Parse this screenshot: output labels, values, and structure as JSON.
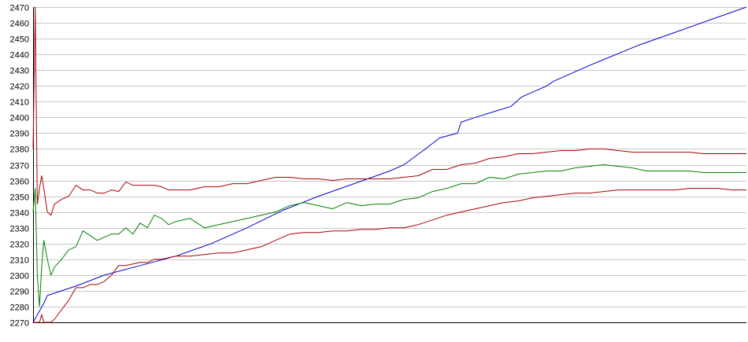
{
  "chart_data": {
    "type": "line",
    "title": "",
    "xlabel": "",
    "ylabel": "",
    "ylim": [
      2270,
      2470
    ],
    "y_ticks": [
      2270,
      2280,
      2290,
      2300,
      2310,
      2320,
      2330,
      2340,
      2350,
      2360,
      2370,
      2380,
      2390,
      2400,
      2410,
      2420,
      2430,
      2440,
      2450,
      2460,
      2470
    ],
    "y_tick_labels": [
      "2270",
      "2280",
      "2290",
      "2300",
      "2310",
      "2320",
      "2330",
      "2340",
      "2350",
      "2360",
      "2370",
      "2380",
      "2390",
      "2400",
      "2410",
      "2420",
      "2430",
      "2440",
      "2450",
      "2460",
      "2470"
    ],
    "xlim": [
      0,
      100
    ],
    "grid": true,
    "legend": "none",
    "series": [
      {
        "color": "#0000cc",
        "x": [
          0,
          1.5,
          2,
          4,
          6,
          10,
          15,
          20,
          25,
          30,
          35,
          40,
          45,
          50,
          52,
          55,
          57,
          59.5,
          60,
          62,
          67,
          68.5,
          72,
          73,
          78,
          85,
          90,
          95,
          100
        ],
        "values": [
          2270,
          2282,
          2287,
          2290,
          2293,
          2300,
          2306,
          2312,
          2320,
          2330,
          2341,
          2350,
          2358,
          2366,
          2370,
          2380,
          2387,
          2390,
          2397,
          2400,
          2407,
          2413,
          2420,
          2423,
          2433,
          2446,
          2454,
          2462,
          2470
        ]
      },
      {
        "color": "#008000",
        "x": [
          0,
          0.3,
          0.6,
          0.9,
          1.2,
          1.5,
          2,
          2.5,
          3,
          4,
          5,
          6,
          7,
          8,
          9,
          10,
          11,
          12,
          13,
          14,
          15,
          16,
          17,
          18,
          19,
          20,
          22,
          24,
          26,
          28,
          30,
          32,
          34,
          36,
          38,
          40,
          42,
          44,
          46,
          48,
          50,
          52,
          54,
          56,
          58,
          60,
          62,
          64,
          66,
          68,
          70,
          72,
          74,
          76,
          78,
          80,
          82,
          84,
          86,
          88,
          90,
          92,
          94,
          96,
          98,
          100
        ],
        "values": [
          2340,
          2355,
          2300,
          2280,
          2305,
          2322,
          2310,
          2300,
          2305,
          2310,
          2316,
          2318,
          2328,
          2325,
          2322,
          2324,
          2326,
          2326,
          2330,
          2326,
          2333,
          2330,
          2338,
          2336,
          2332,
          2334,
          2336,
          2330,
          2332,
          2334,
          2336,
          2338,
          2340,
          2344,
          2346,
          2344,
          2342,
          2346,
          2344,
          2345,
          2345,
          2348,
          2349,
          2353,
          2355,
          2358,
          2358,
          2362,
          2361,
          2364,
          2365,
          2366,
          2366,
          2368,
          2369,
          2370,
          2369,
          2368,
          2366,
          2366,
          2366,
          2366,
          2365,
          2365,
          2365,
          2365
        ]
      },
      {
        "color": "#aa0000",
        "x": [
          0,
          0.3,
          0.6,
          0.9,
          1.2,
          1.5,
          2,
          2.5,
          3,
          4,
          5,
          6,
          7,
          8,
          9,
          10,
          11,
          12,
          13,
          14,
          15,
          16,
          17,
          18,
          19,
          20,
          22,
          24,
          26,
          28,
          30,
          32,
          34,
          36,
          38,
          40,
          42,
          44,
          46,
          48,
          50,
          52,
          54,
          56,
          58,
          60,
          62,
          64,
          66,
          68,
          70,
          72,
          74,
          76,
          78,
          80,
          82,
          84,
          86,
          88,
          90,
          92,
          94,
          96,
          98,
          100
        ],
        "values": [
          2380,
          2470,
          2345,
          2355,
          2363,
          2355,
          2340,
          2338,
          2345,
          2348,
          2350,
          2357,
          2354,
          2354,
          2352,
          2352,
          2354,
          2353,
          2359,
          2357,
          2357,
          2357,
          2357,
          2356,
          2354,
          2354,
          2354,
          2356,
          2356,
          2358,
          2358,
          2360,
          2362,
          2362,
          2361,
          2361,
          2360,
          2361,
          2361,
          2361,
          2361,
          2362,
          2363,
          2367,
          2367,
          2370,
          2371,
          2374,
          2375,
          2377,
          2377,
          2378,
          2379,
          2379,
          2380,
          2380,
          2379,
          2378,
          2378,
          2378,
          2378,
          2378,
          2377,
          2377,
          2377,
          2377
        ]
      },
      {
        "color": "#aa0000",
        "x": [
          0,
          0.3,
          0.6,
          0.9,
          1.2,
          1.5,
          2,
          2.5,
          3,
          4,
          5,
          6,
          7,
          8,
          9,
          10,
          11,
          12,
          13,
          14,
          15,
          16,
          17,
          18,
          19,
          20,
          22,
          24,
          26,
          28,
          30,
          32,
          34,
          36,
          38,
          40,
          42,
          44,
          46,
          48,
          50,
          52,
          54,
          56,
          58,
          60,
          62,
          64,
          66,
          68,
          70,
          72,
          74,
          76,
          78,
          80,
          82,
          84,
          86,
          88,
          90,
          92,
          94,
          96,
          98,
          100
        ],
        "values": [
          2270,
          2270,
          2270,
          2270,
          2275,
          2270,
          2270,
          2270,
          2272,
          2278,
          2284,
          2292,
          2292,
          2294,
          2294,
          2296,
          2300,
          2306,
          2306,
          2307,
          2308,
          2308,
          2310,
          2310,
          2311,
          2312,
          2312,
          2313,
          2314,
          2314,
          2316,
          2318,
          2322,
          2326,
          2327,
          2327,
          2328,
          2328,
          2329,
          2329,
          2330,
          2330,
          2332,
          2335,
          2338,
          2340,
          2342,
          2344,
          2346,
          2347,
          2349,
          2350,
          2351,
          2352,
          2352,
          2353,
          2354,
          2354,
          2354,
          2354,
          2354,
          2355,
          2355,
          2355,
          2354,
          2354
        ]
      }
    ]
  }
}
